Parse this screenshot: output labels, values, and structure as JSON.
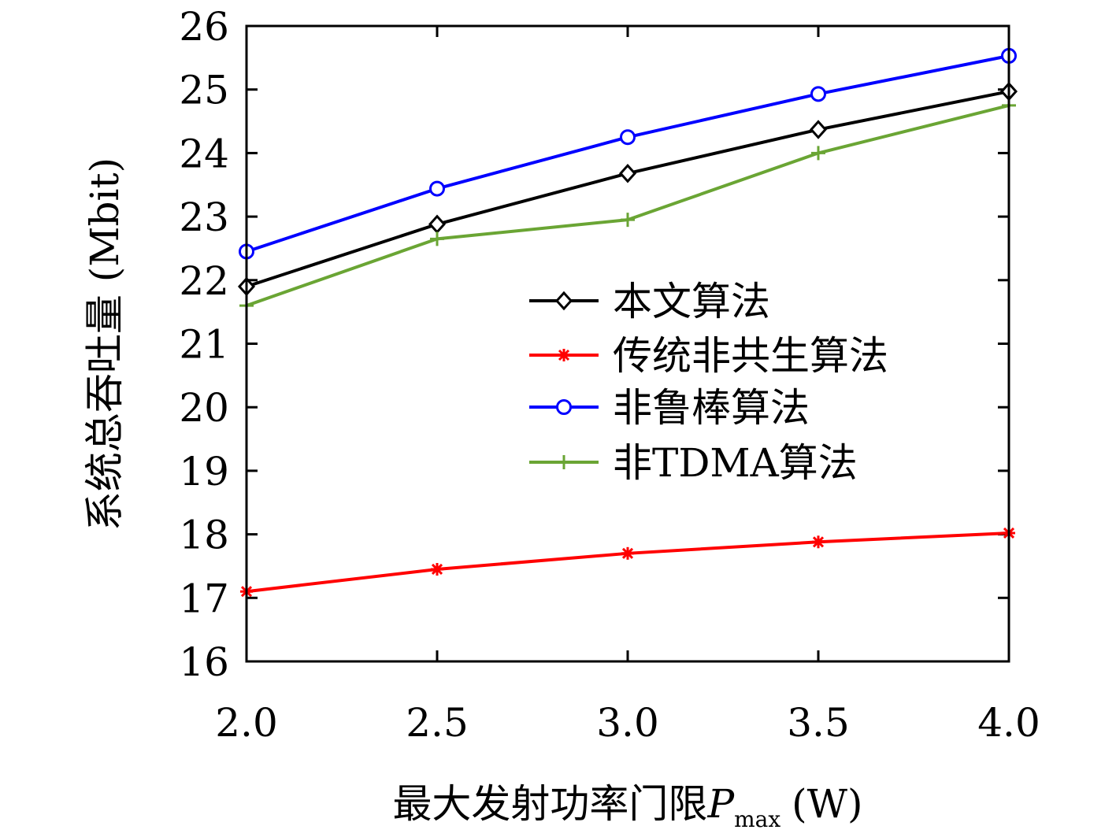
{
  "chart_data": {
    "type": "line",
    "xlabel": "最大发射功率门限",
    "xlabel_symbol": "P",
    "xlabel_subscript": "max",
    "xlabel_unit": "(W)",
    "ylabel": "系统总吞吐量 (Mbit)",
    "x": [
      2.0,
      2.5,
      3.0,
      3.5,
      4.0
    ],
    "x_tick_labels": [
      "2.0",
      "2.5",
      "3.0",
      "3.5",
      "4.0"
    ],
    "xlim": [
      2.0,
      4.0
    ],
    "ylim": [
      16,
      26
    ],
    "y_ticks": [
      16,
      17,
      18,
      19,
      20,
      21,
      22,
      23,
      24,
      25,
      26
    ],
    "y_tick_labels": [
      "16",
      "17",
      "18",
      "19",
      "20",
      "21",
      "22",
      "23",
      "24",
      "25",
      "26"
    ],
    "grid": false,
    "legend_position": "center-right",
    "series": [
      {
        "name": "本文算法",
        "color": "#000000",
        "marker": "diamond",
        "values": [
          21.9,
          22.88,
          23.68,
          24.37,
          24.97
        ]
      },
      {
        "name": "传统非共生算法",
        "color": "#ff0000",
        "marker": "asterisk",
        "values": [
          17.1,
          17.45,
          17.7,
          17.88,
          18.02
        ]
      },
      {
        "name": "非鲁棒算法",
        "color": "#0000ff",
        "marker": "circle",
        "values": [
          22.45,
          23.44,
          24.25,
          24.93,
          25.53
        ]
      },
      {
        "name": "非TDMA算法",
        "color": "#6aa534",
        "marker": "plus",
        "values": [
          21.6,
          22.65,
          22.95,
          24.0,
          24.75
        ]
      }
    ]
  }
}
